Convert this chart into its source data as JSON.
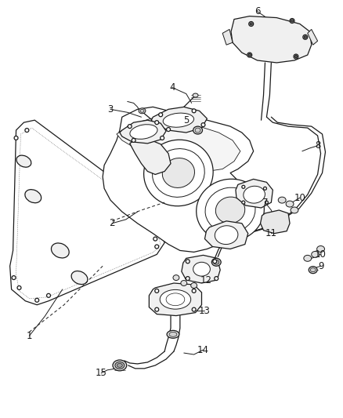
{
  "background_color": "#ffffff",
  "line_color": "#1a1a1a",
  "fig_width": 4.38,
  "fig_height": 5.33,
  "dpi": 100,
  "label_fontsize": 8.5,
  "parts": {
    "gasket_label": "1",
    "manifold_label": "2",
    "sensor3_label": "3",
    "sensor4_label": "4",
    "sensor5_label": "5",
    "shield_label": "6",
    "bracket7_label": "7",
    "pipe8_label": "8",
    "bolt9_label": "9",
    "bolt10_label": "10",
    "part11_label": "11",
    "bracket12_label": "12",
    "flange13_label": "13",
    "fitting14_label": "14",
    "connector15_label": "15"
  }
}
